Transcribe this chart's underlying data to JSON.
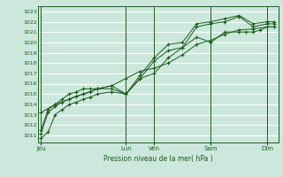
{
  "bg_color": "#cce8dc",
  "grid_color": "#ffffff",
  "line_color": "#1a5c1a",
  "title": "Pression niveau de la mer( hPa )",
  "ylabel_values": [
    1011,
    1012,
    1013,
    1014,
    1015,
    1016,
    1017,
    1018,
    1019,
    1020,
    1021,
    1022,
    1023
  ],
  "ylim": [
    1010.3,
    1023.5
  ],
  "day_labels": [
    "Jeu",
    "Lun",
    "Ven",
    "Sam",
    "Dim"
  ],
  "day_positions": [
    0,
    3.0,
    4.0,
    6.0,
    8.0
  ],
  "xlim": [
    -0.1,
    8.4
  ],
  "series1_x": [
    0,
    0.25,
    0.5,
    0.75,
    1.0,
    1.25,
    1.5,
    1.75,
    2.0,
    2.5,
    3.0,
    3.5,
    4.0,
    4.5,
    5.0,
    5.5,
    6.0,
    6.5,
    7.0,
    7.25,
    7.5,
    7.75,
    8.0,
    8.25
  ],
  "series1_y": [
    1010.7,
    1011.3,
    1013.0,
    1013.5,
    1014.0,
    1014.2,
    1014.5,
    1014.7,
    1015.0,
    1015.2,
    1015.0,
    1016.5,
    1017.0,
    1018.5,
    1019.5,
    1020.5,
    1020.0,
    1021.0,
    1021.0,
    1021.0,
    1021.0,
    1021.2,
    1021.5,
    1021.5
  ],
  "series2_x": [
    0,
    0.25,
    0.5,
    0.75,
    1.0,
    1.25,
    1.5,
    1.75,
    2.0,
    2.5,
    3.0,
    3.5,
    4.0,
    4.5,
    5.0,
    5.5,
    6.0,
    6.5,
    7.0,
    7.5,
    8.0,
    8.25
  ],
  "series2_y": [
    1011.2,
    1013.2,
    1013.8,
    1014.2,
    1014.5,
    1014.8,
    1015.0,
    1015.2,
    1015.5,
    1015.5,
    1015.0,
    1016.5,
    1018.2,
    1019.2,
    1019.5,
    1021.5,
    1021.8,
    1022.0,
    1022.5,
    1021.5,
    1021.8,
    1021.8
  ],
  "series3_x": [
    0,
    0.25,
    0.5,
    0.75,
    1.0,
    1.25,
    1.5,
    1.75,
    2.0,
    2.5,
    3.0,
    3.5,
    4.0,
    4.5,
    5.0,
    5.5,
    6.0,
    6.5,
    7.0,
    7.5,
    8.0,
    8.25
  ],
  "series3_y": [
    1011.5,
    1013.5,
    1014.0,
    1014.5,
    1015.0,
    1015.2,
    1015.5,
    1015.5,
    1015.5,
    1015.8,
    1015.0,
    1016.8,
    1018.5,
    1019.8,
    1020.0,
    1021.8,
    1022.0,
    1022.3,
    1022.6,
    1021.8,
    1022.0,
    1022.0
  ],
  "series4_x": [
    0,
    0.5,
    1.0,
    1.5,
    2.0,
    2.5,
    3.0,
    3.5,
    4.0,
    4.5,
    5.0,
    5.5,
    6.0,
    6.5,
    7.0,
    7.5,
    8.0,
    8.25
  ],
  "series4_y": [
    1013.2,
    1014.0,
    1014.5,
    1015.0,
    1015.5,
    1015.8,
    1016.5,
    1017.2,
    1017.5,
    1018.0,
    1018.8,
    1019.8,
    1020.2,
    1020.8,
    1021.2,
    1021.3,
    1021.5,
    1021.5
  ]
}
